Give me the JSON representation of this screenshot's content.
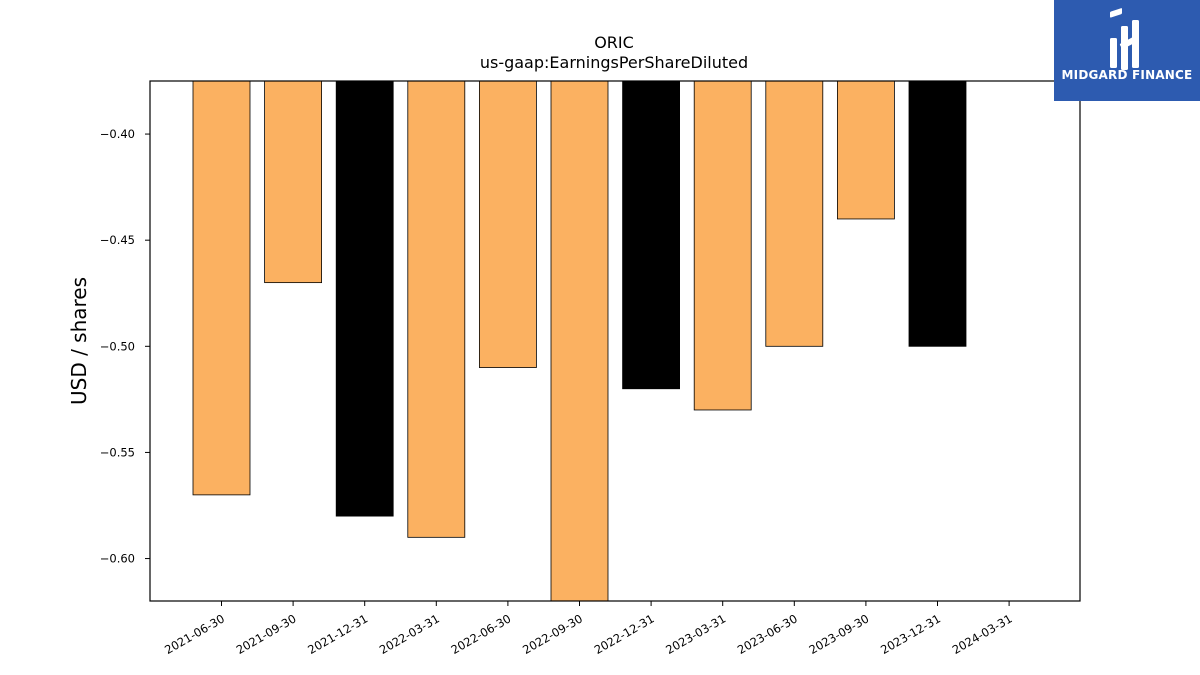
{
  "chart_data": {
    "type": "bar",
    "title": "ORIC",
    "subtitle": "us-gaap:EarningsPerShareDiluted",
    "ylabel": "USD / shares",
    "xlabel": "",
    "categories": [
      "2021-06-30",
      "2021-09-30",
      "2021-12-31",
      "2022-03-31",
      "2022-06-30",
      "2022-09-30",
      "2022-12-31",
      "2023-03-31",
      "2023-06-30",
      "2023-09-30",
      "2023-12-31",
      "2024-03-31"
    ],
    "values": [
      -0.57,
      -0.47,
      -0.58,
      -0.59,
      -0.51,
      -0.62,
      -0.52,
      -0.53,
      -0.5,
      -0.44,
      -0.5,
      null
    ],
    "bar_colors": [
      "#fbb161",
      "#fbb161",
      "#000000",
      "#fbb161",
      "#fbb161",
      "#fbb161",
      "#000000",
      "#fbb161",
      "#fbb161",
      "#fbb161",
      "#000000",
      null
    ],
    "ylim": [
      -0.62,
      -0.375
    ],
    "yticks": [
      -0.4,
      -0.45,
      -0.5,
      -0.55,
      -0.6
    ],
    "ytick_labels": [
      "−0.40",
      "−0.45",
      "−0.50",
      "−0.55",
      "−0.60"
    ],
    "grid": false,
    "legend": "none"
  },
  "logo": {
    "text": "MIDGARD FINANCE",
    "color": "#2d5bb0"
  }
}
